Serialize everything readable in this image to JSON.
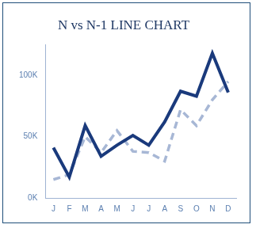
{
  "chart_data": {
    "type": "line",
    "title": "N vs N-1 LINE CHART",
    "categories": [
      "J",
      "F",
      "M",
      "A",
      "M",
      "J",
      "J",
      "A",
      "S",
      "O",
      "N",
      "D"
    ],
    "series": [
      {
        "color": "#1a3a7c",
        "line_style": "solid",
        "values": [
          41000,
          17000,
          59000,
          34000,
          43000,
          51000,
          43000,
          62000,
          87000,
          83000,
          118000,
          86000
        ]
      },
      {
        "color": "#a7b7d5",
        "line_style": "dashed",
        "values": [
          15000,
          19000,
          50000,
          37000,
          55000,
          38000,
          37000,
          30000,
          72000,
          59000,
          80000,
          95000
        ]
      }
    ],
    "ylim": [
      0,
      125000
    ],
    "yticks": [
      {
        "value": 0,
        "label": "0K"
      },
      {
        "value": 50000,
        "label": "50K"
      },
      {
        "value": 100000,
        "label": "100K"
      }
    ],
    "grid": false
  }
}
